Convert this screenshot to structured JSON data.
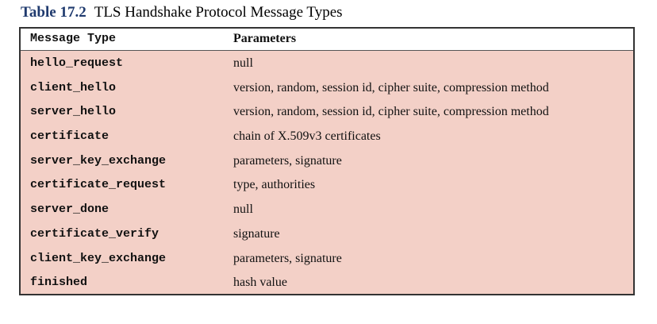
{
  "caption": {
    "number": "Table 17.2",
    "title": "TLS Handshake Protocol Message Types"
  },
  "table": {
    "headers": {
      "type": "Message Type",
      "params": "Parameters"
    },
    "rows": [
      {
        "type": "hello_request",
        "params": "null"
      },
      {
        "type": "client_hello",
        "params": "version, random, session id, cipher suite, compression method"
      },
      {
        "type": "server_hello",
        "params": "version, random, session id, cipher suite, compression method"
      },
      {
        "type": "certificate",
        "params": "chain of X.509v3 certificates"
      },
      {
        "type": "server_key_exchange",
        "params": "parameters, signature"
      },
      {
        "type": "certificate_request",
        "params": "type, authorities"
      },
      {
        "type": "server_done",
        "params": "null"
      },
      {
        "type": "certificate_verify",
        "params": "signature"
      },
      {
        "type": "client_key_exchange",
        "params": "parameters, signature"
      },
      {
        "type": "finished",
        "params": "hash value"
      }
    ]
  },
  "colors": {
    "row_background": "#f3d0c7",
    "caption_number": "#1f3a6e",
    "border": "#333333"
  }
}
